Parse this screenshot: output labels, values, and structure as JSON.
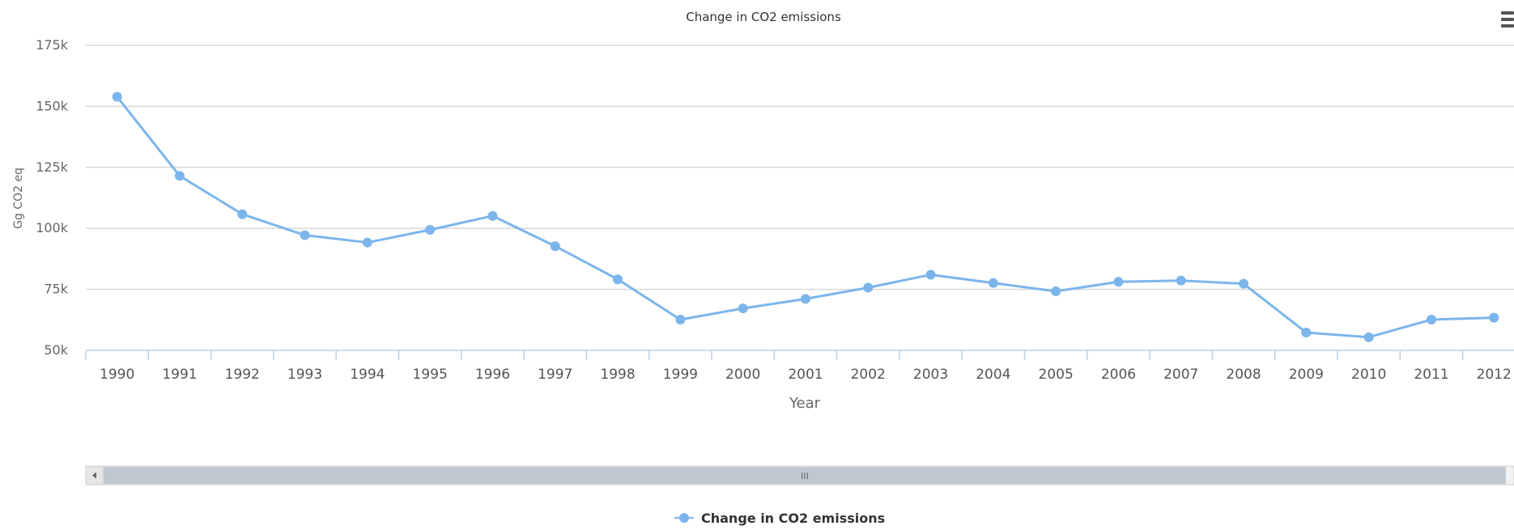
{
  "chart_data": {
    "type": "line",
    "title": "Change in CO2 emissions",
    "xlabel": "Year",
    "ylabel": "Gg CO2 eq",
    "categories": [
      "1990",
      "1991",
      "1992",
      "1993",
      "1994",
      "1995",
      "1996",
      "1997",
      "1998",
      "1999",
      "2000",
      "2001",
      "2002",
      "2003",
      "2004",
      "2005",
      "2006",
      "2007",
      "2008",
      "2009",
      "2010",
      "2011",
      "2012"
    ],
    "series": [
      {
        "name": "Change in CO2 emissions",
        "color": "#7cb5ec",
        "values": [
          153900,
          121500,
          105800,
          97200,
          94200,
          99400,
          105100,
          92700,
          79100,
          62600,
          67200,
          71100,
          75700,
          81000,
          77600,
          74200,
          78100,
          78600,
          77300,
          57300,
          55400,
          62600,
          63400
        ]
      }
    ],
    "ylim": [
      50000,
      175000
    ],
    "yticks": [
      {
        "value": 50000,
        "label": "50k"
      },
      {
        "value": 75000,
        "label": "75k"
      },
      {
        "value": 100000,
        "label": "100k"
      },
      {
        "value": 125000,
        "label": "125k"
      },
      {
        "value": 150000,
        "label": "150k"
      },
      {
        "value": 175000,
        "label": "175k"
      }
    ],
    "grid": true,
    "legend_position": "bottom-center"
  },
  "navigator": {
    "scrollbar_grip": "III"
  },
  "icons": {
    "menu": "hamburger-menu-icon",
    "left_arrow": "chevron-left-icon",
    "legend_marker": "circle-marker-icon"
  }
}
